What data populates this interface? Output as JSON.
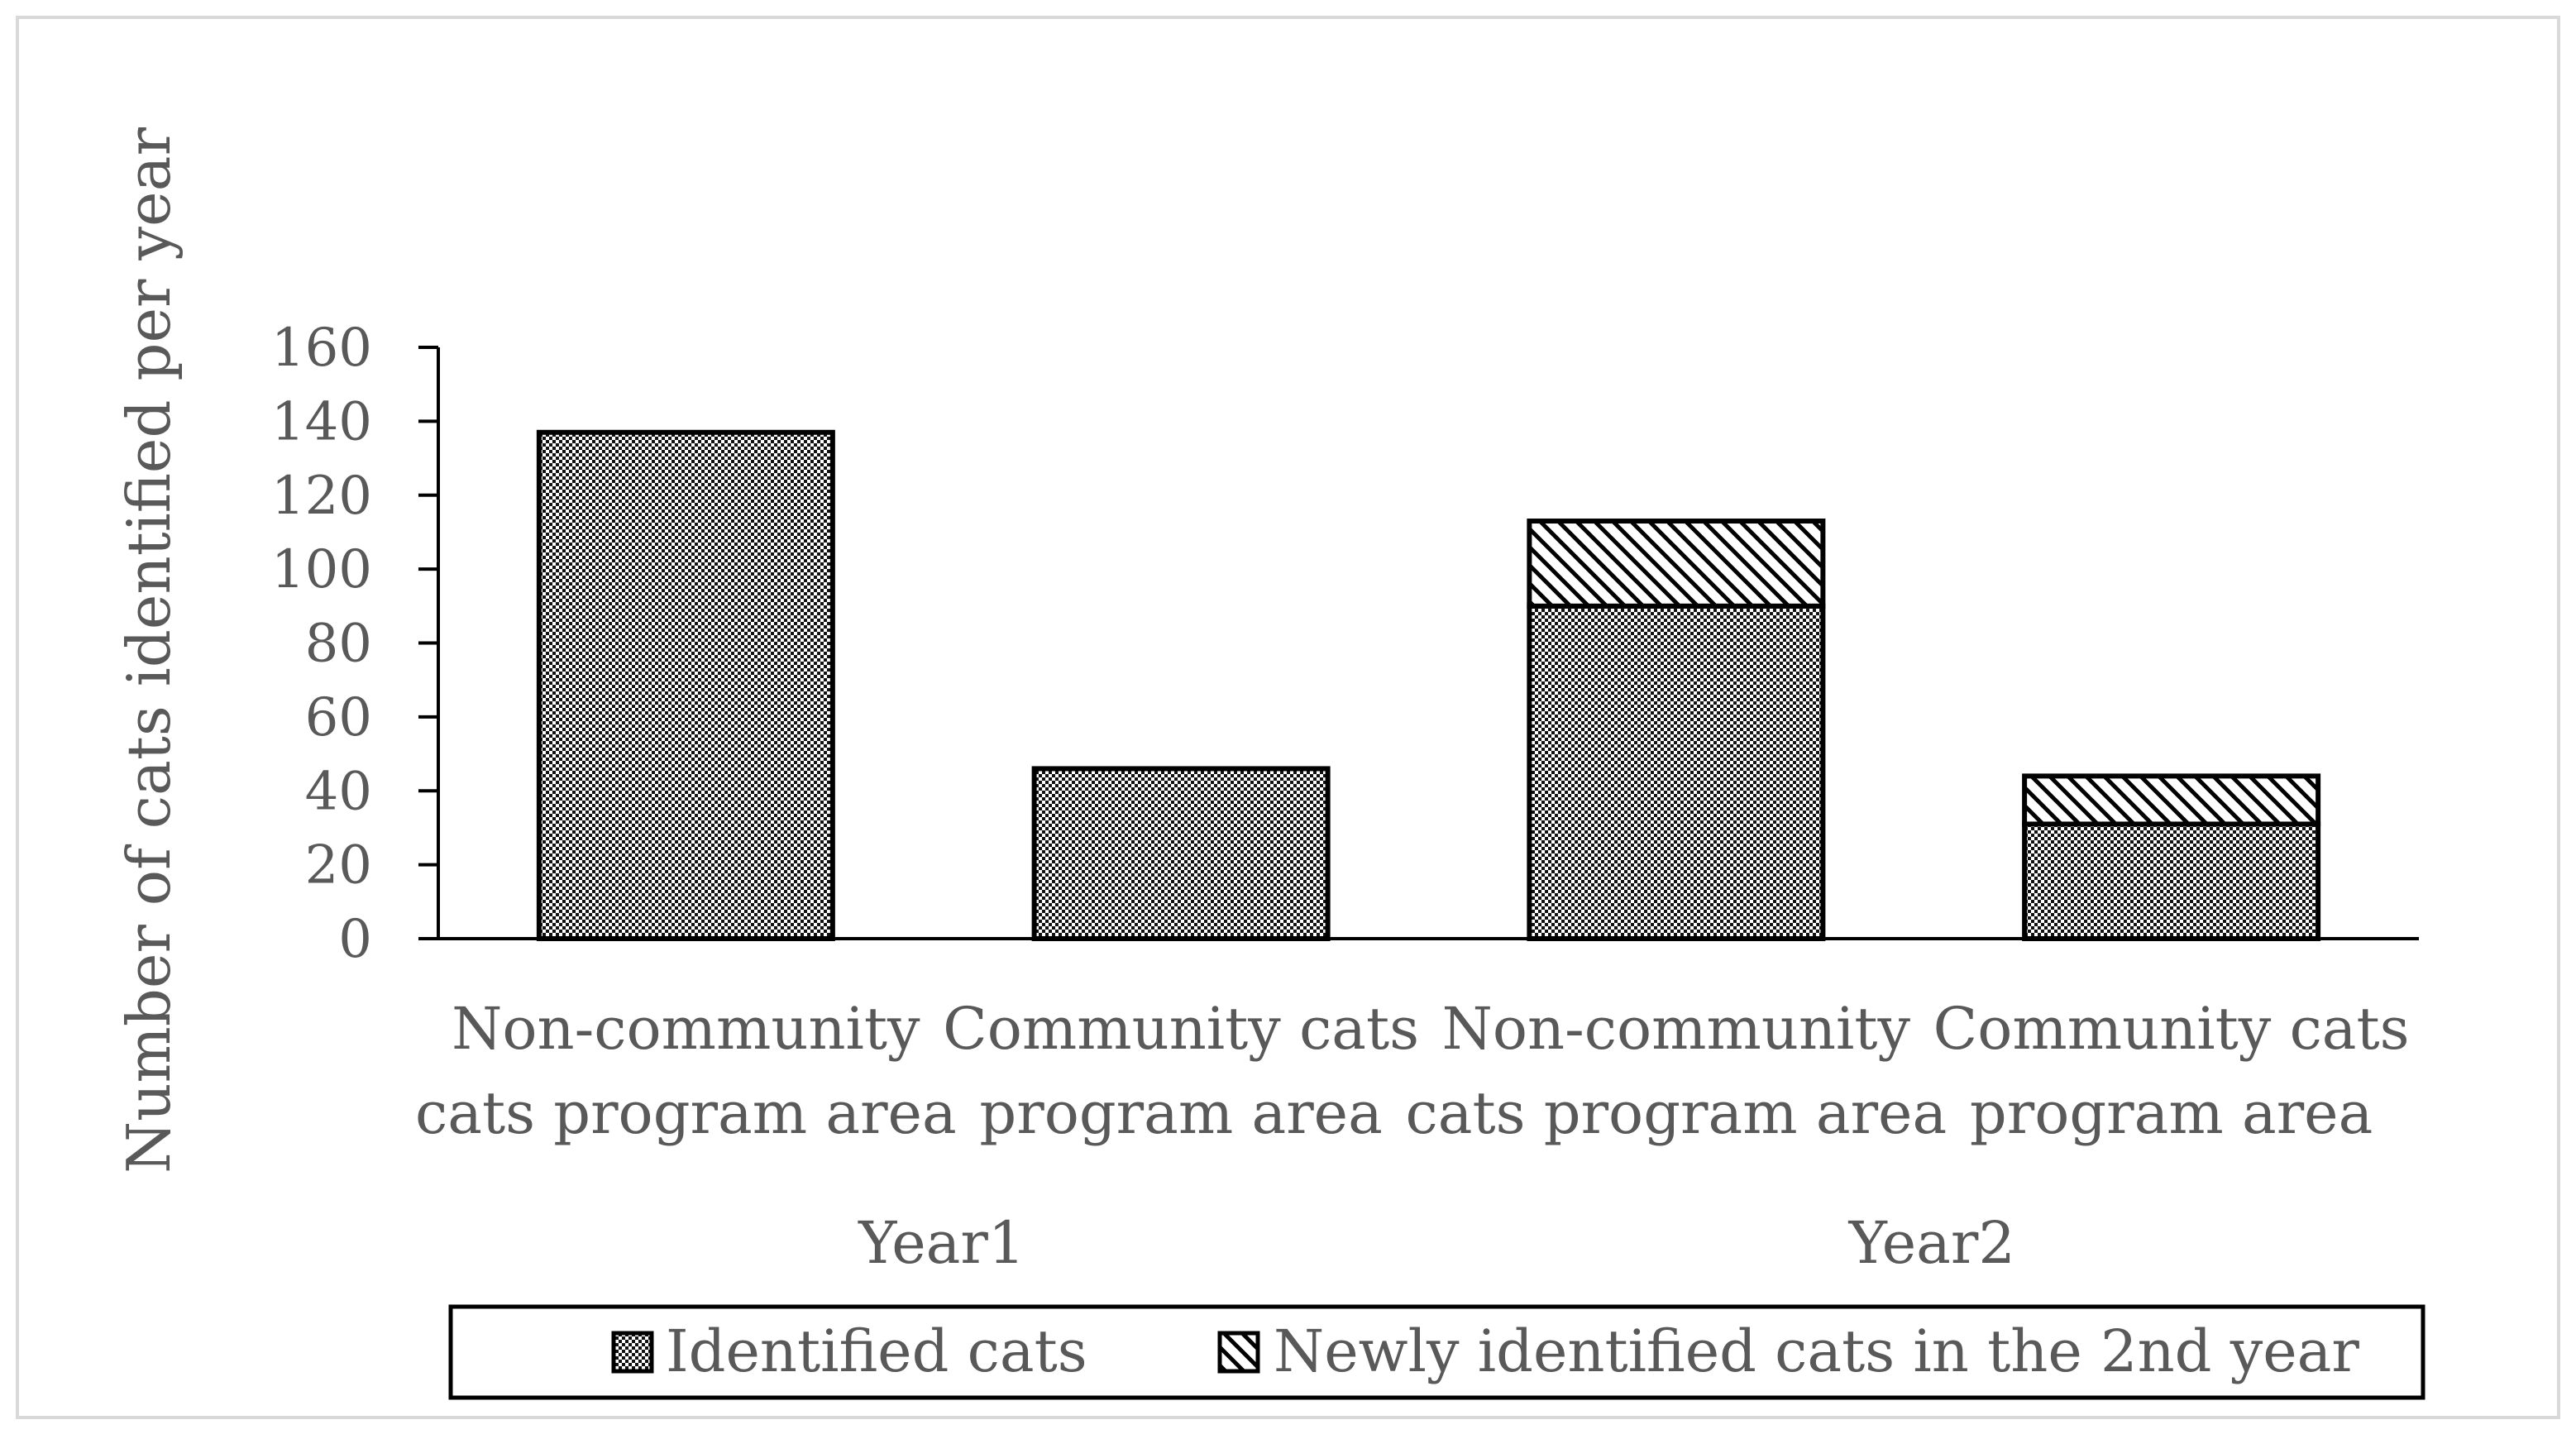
{
  "chart_data": {
    "type": "bar",
    "stacked": true,
    "title": "",
    "ylabel": "Number of cats identified per year",
    "xlabel": "",
    "ylim": [
      0,
      160
    ],
    "yticks": [
      0,
      20,
      40,
      60,
      80,
      100,
      120,
      140,
      160
    ],
    "grid": false,
    "legend_position": "bottom",
    "categories": [
      [
        "Non-community",
        "cats program area"
      ],
      [
        "Community cats",
        "program area"
      ],
      [
        "Non-community",
        "cats program area"
      ],
      [
        "Community cats",
        "program area"
      ]
    ],
    "groups": [
      {
        "label": "Year1",
        "categories": [
          0,
          1
        ]
      },
      {
        "label": "Year2",
        "categories": [
          2,
          3
        ]
      }
    ],
    "series": [
      {
        "name": "Identified cats",
        "values": [
          137,
          46,
          90,
          31
        ],
        "pattern": "checker"
      },
      {
        "name": "Newly identified cats in the 2nd year",
        "values": [
          0,
          0,
          23,
          13
        ],
        "pattern": "diagonal"
      }
    ],
    "colors": {
      "ink": "#000000",
      "text": "#595959",
      "frame": "#d9d9d9",
      "fill": "#ffffff"
    }
  }
}
